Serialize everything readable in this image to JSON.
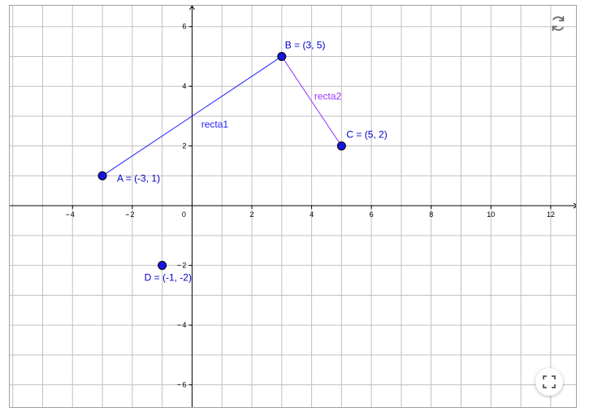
{
  "axes": {
    "x_ticks": [
      "4",
      "2",
      "0",
      "2",
      "4",
      "6",
      "8",
      "10",
      "12"
    ],
    "x_tick_values": [
      -4,
      -2,
      0,
      2,
      4,
      6,
      8,
      10,
      12
    ],
    "y_ticks": [
      "6",
      "4",
      "2",
      "2",
      "4",
      "6"
    ],
    "y_tick_values": [
      6,
      4,
      2,
      -2,
      -4,
      -6
    ],
    "x_range": [
      -6.1,
      12.9
    ],
    "y_range": [
      -6.8,
      6.7
    ],
    "grid": true,
    "minor_grid_step": 1
  },
  "points": [
    {
      "id": "A",
      "label": "A = (-3, 1)",
      "x": -3,
      "y": 1
    },
    {
      "id": "B",
      "label": "B = (3, 5)",
      "x": 3,
      "y": 5
    },
    {
      "id": "C",
      "label": "C = (5, 2)",
      "x": 5,
      "y": 2
    },
    {
      "id": "D",
      "label": "D = (-1, -2)",
      "x": -1,
      "y": -2
    }
  ],
  "segments": [
    {
      "name": "recta1",
      "from": "A",
      "to": "B",
      "color": "#1f1fff"
    },
    {
      "name": "recta2",
      "from": "B",
      "to": "C",
      "color": "#9933ff"
    }
  ],
  "colors": {
    "point_fill": "#1616e0",
    "point_stroke": "#000000",
    "point_label": "#0000cc",
    "axis": "#000000",
    "grid": "#c0c0c0",
    "icon": "#6b6b6b"
  },
  "icons": {
    "reset": "refresh-icon",
    "fullscreen": "fullscreen-icon"
  }
}
